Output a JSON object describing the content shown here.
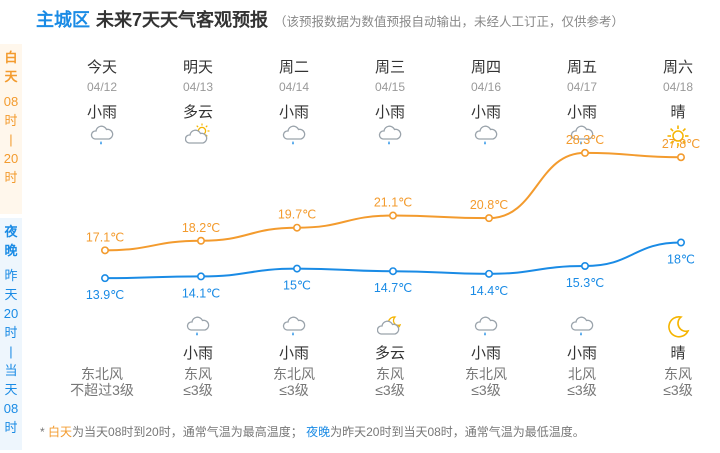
{
  "header": {
    "region": "主城区",
    "title": "未来7天天气客观预报",
    "note": "（该预报数据为数值预报自动输出，未经人工订正，仅供参考）"
  },
  "side": {
    "day_label": [
      "白",
      "天"
    ],
    "day_range": [
      "08",
      "时",
      "|",
      "20",
      "时"
    ],
    "night_label": [
      "夜",
      "晚"
    ],
    "night_range": [
      "昨",
      "天",
      "20",
      "时",
      "|",
      "当",
      "天",
      "08",
      "时"
    ]
  },
  "days": [
    {
      "name": "今天",
      "date": "04/12",
      "day_weather": "小雨",
      "day_icon": "cloud-rain-icon",
      "day_temp": "17.1℃",
      "night_temp": "13.9℃",
      "night_weather": "",
      "night_icon": "",
      "wind_dir": "东北风",
      "wind_level": "不超过3级"
    },
    {
      "name": "明天",
      "date": "04/13",
      "day_weather": "多云",
      "day_icon": "partly-cloudy-icon",
      "day_temp": "18.2℃",
      "night_temp": "14.1℃",
      "night_weather": "小雨",
      "night_icon": "cloud-rain-icon",
      "wind_dir": "东风",
      "wind_level": "≤3级"
    },
    {
      "name": "周二",
      "date": "04/14",
      "day_weather": "小雨",
      "day_icon": "cloud-rain-icon",
      "day_temp": "19.7℃",
      "night_temp": "15℃",
      "night_weather": "小雨",
      "night_icon": "cloud-rain-icon",
      "wind_dir": "东北风",
      "wind_level": "≤3级"
    },
    {
      "name": "周三",
      "date": "04/15",
      "day_weather": "小雨",
      "day_icon": "cloud-rain-icon",
      "day_temp": "21.1℃",
      "night_temp": "14.7℃",
      "night_weather": "多云",
      "night_icon": "moon-cloud-icon",
      "wind_dir": "东风",
      "wind_level": "≤3级"
    },
    {
      "name": "周四",
      "date": "04/16",
      "day_weather": "小雨",
      "day_icon": "cloud-rain-icon",
      "day_temp": "20.8℃",
      "night_temp": "14.4℃",
      "night_weather": "小雨",
      "night_icon": "cloud-rain-icon",
      "wind_dir": "东北风",
      "wind_level": "≤3级"
    },
    {
      "name": "周五",
      "date": "04/17",
      "day_weather": "小雨",
      "day_icon": "cloud-rain-icon",
      "day_temp": "28.3℃",
      "night_temp": "15.3℃",
      "night_weather": "小雨",
      "night_icon": "cloud-rain-icon",
      "wind_dir": "北风",
      "wind_level": "≤3级"
    },
    {
      "name": "周六",
      "date": "04/18",
      "day_weather": "晴",
      "day_icon": "sun-icon",
      "day_temp": "27.8℃",
      "night_temp": "18℃",
      "night_weather": "晴",
      "night_icon": "moon-icon",
      "wind_dir": "东风",
      "wind_level": "≤3级"
    }
  ],
  "chart_data": {
    "type": "line",
    "categories": [
      "今天",
      "明天",
      "周二",
      "周三",
      "周四",
      "周五",
      "周六"
    ],
    "series": [
      {
        "values": [
          17.1,
          18.2,
          19.7,
          21.1,
          20.8,
          28.3,
          27.8
        ],
        "color": "#f39b2e"
      },
      {
        "values": [
          13.9,
          14.1,
          15,
          14.7,
          14.4,
          15.3,
          18
        ],
        "color": "#1a8be5"
      }
    ]
  },
  "footnote": {
    "star": "* ",
    "day_word": "白天",
    "day_text": "为当天08时到20时，通常气温为最高温度；",
    "night_word": "夜晚",
    "night_text": "为昨天20时到当天08时，通常气温为最低温度。"
  },
  "colors": {
    "day": "#f39b2e",
    "night": "#1a8be5",
    "rain": "#1a8be5",
    "sun": "#f5b400"
  }
}
